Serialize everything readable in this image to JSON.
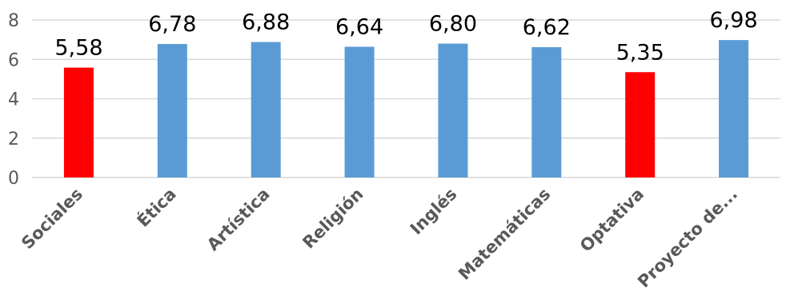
{
  "chart_data": {
    "type": "bar",
    "categories": [
      "Sociales",
      "Ética",
      "Artística",
      "Religión",
      "Inglés",
      "Matemáticas",
      "Optativa",
      "Proyecto de..."
    ],
    "values": [
      5.58,
      6.78,
      6.88,
      6.64,
      6.8,
      6.62,
      5.35,
      6.98
    ],
    "data_labels": [
      "5,58",
      "6,78",
      "6,88",
      "6,64",
      "6,80",
      "6,62",
      "5,35",
      "6,98"
    ],
    "bar_colors": [
      "#ff0000",
      "#5b9bd5",
      "#5b9bd5",
      "#5b9bd5",
      "#5b9bd5",
      "#5b9bd5",
      "#ff0000",
      "#5b9bd5"
    ],
    "yticks": [
      0,
      2,
      4,
      6,
      8
    ],
    "ylim": [
      0,
      8
    ],
    "grid": true,
    "legend": "none"
  }
}
